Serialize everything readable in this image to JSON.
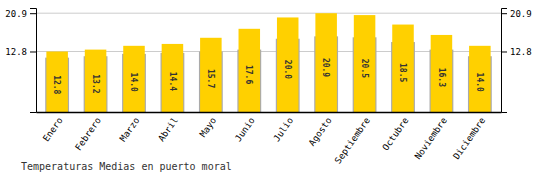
{
  "chart_data": {
    "type": "bar",
    "title": "Temperaturas Medias en puerto moral",
    "categories": [
      "Enero",
      "Febrero",
      "Marzo",
      "Abril",
      "Mayo",
      "Junio",
      "Julio",
      "Agosto",
      "Septiembre",
      "Octubre",
      "Noviembre",
      "Diciembre"
    ],
    "series": [
      {
        "color": "#AAAAAA",
        "values": [
          11.5,
          11.8,
          12.3,
          12.5,
          12.8,
          13.2,
          15.5,
          16.0,
          15.8,
          14.8,
          13.2,
          11.8
        ]
      },
      {
        "color": "#FFD000",
        "values": [
          12.8,
          13.2,
          14.0,
          14.4,
          15.7,
          17.6,
          20.0,
          20.9,
          20.5,
          18.5,
          16.3,
          14.0
        ],
        "value_labels": [
          "12.8",
          "13.2",
          "14.0",
          "14.4",
          "15.7",
          "17.6",
          "20.0",
          "20.9",
          "20.5",
          "18.5",
          "16.3",
          "14.0"
        ],
        "data_labels": true
      }
    ],
    "ylim": [
      0,
      22.0
    ],
    "yticks": [
      12.8,
      20.9
    ],
    "grid": true
  }
}
